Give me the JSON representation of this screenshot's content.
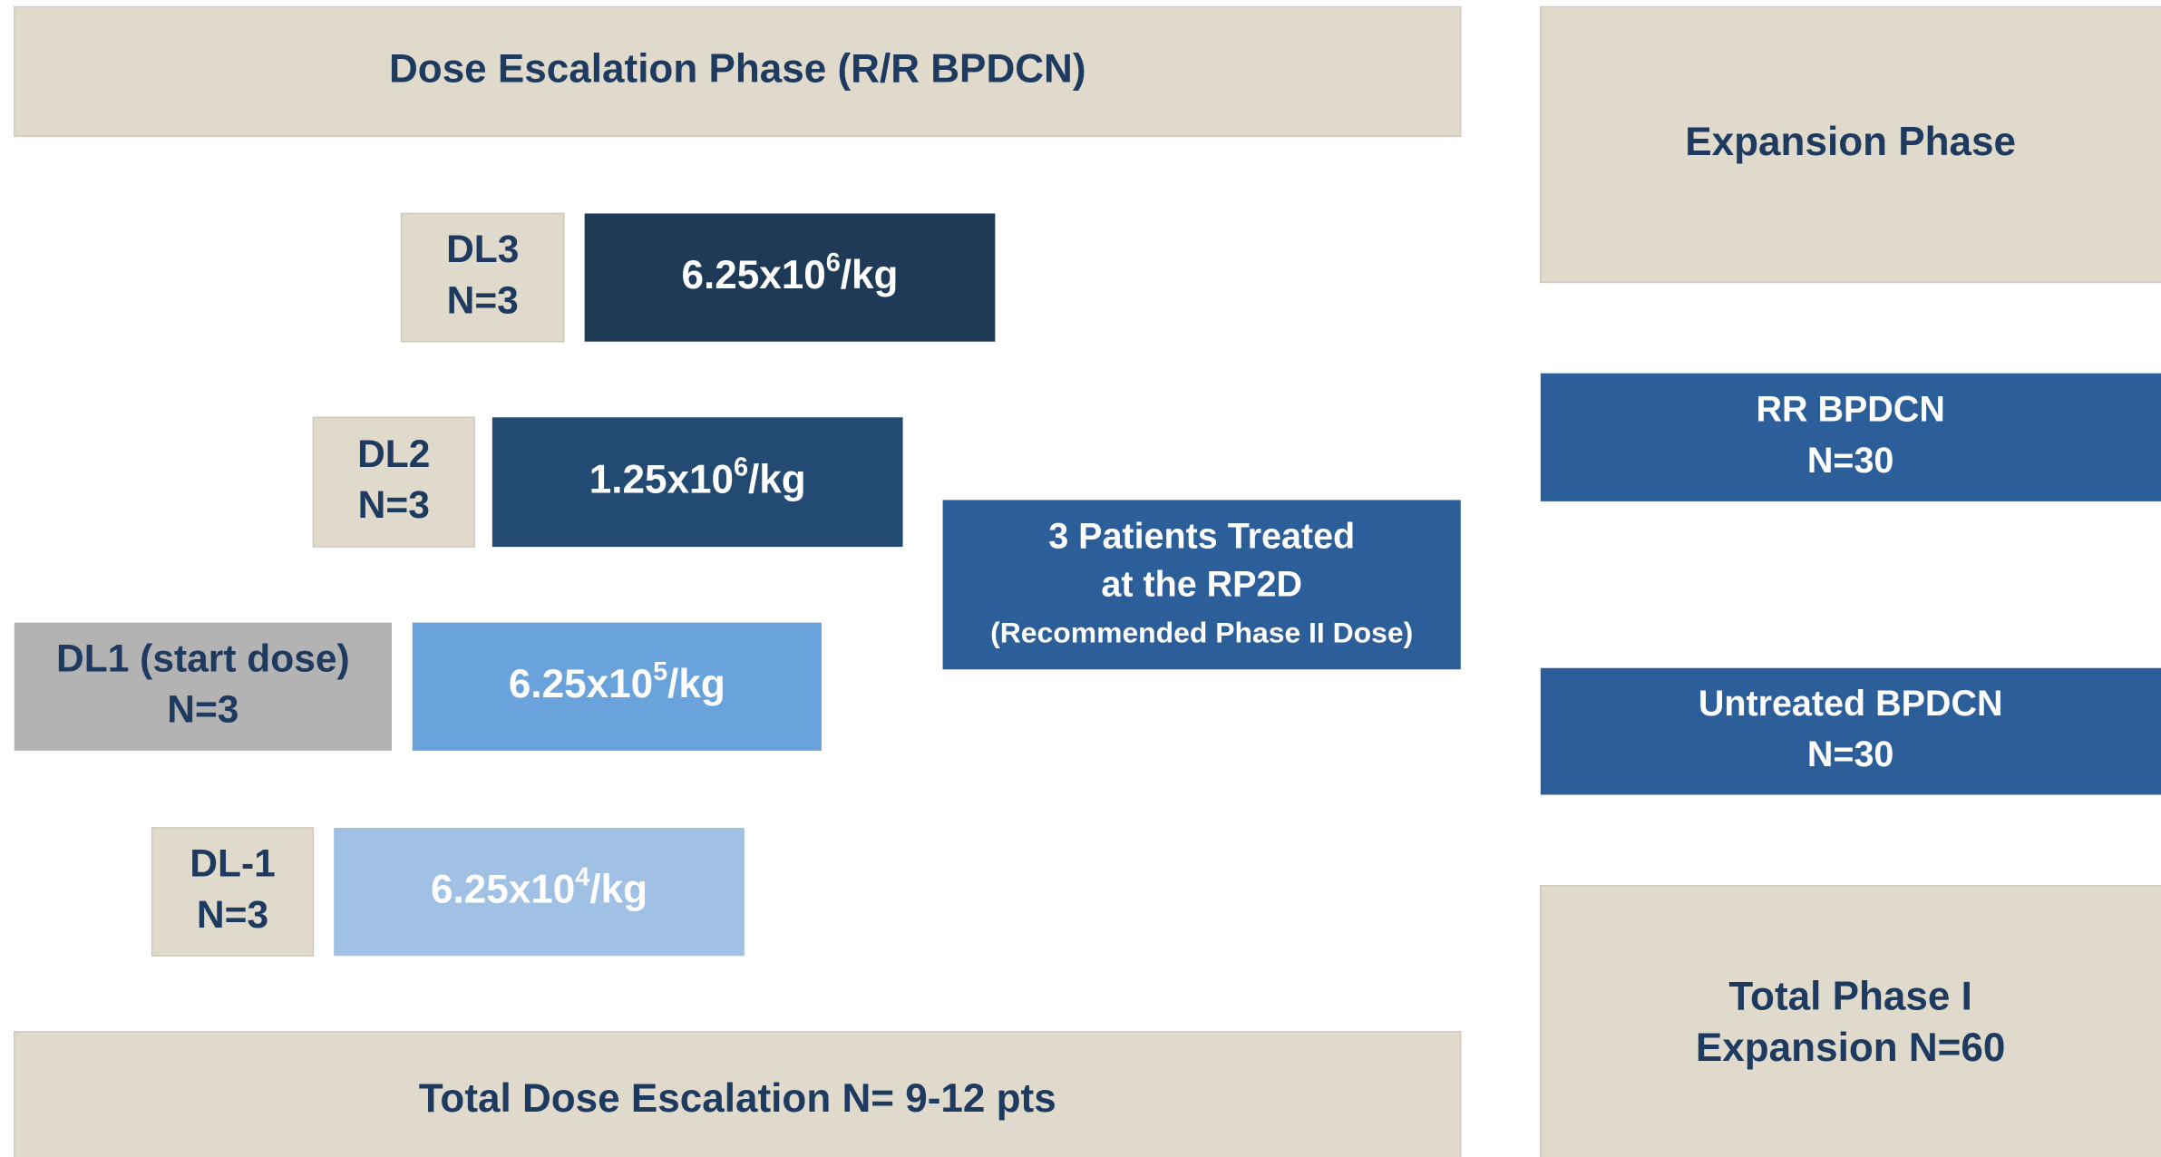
{
  "escalation": {
    "title": "Dose Escalation Phase (R/R BPDCN)",
    "levels": [
      {
        "label": [
          "DL3",
          "N=3"
        ],
        "dose": {
          "base": "6.25x10",
          "exp": "6",
          "unit": "/kg"
        }
      },
      {
        "label": [
          "DL2",
          "N=3"
        ],
        "dose": {
          "base": "1.25x10",
          "exp": "6",
          "unit": "/kg"
        }
      },
      {
        "label": [
          "DL1 (start dose)",
          "N=3"
        ],
        "dose": {
          "base": "6.25x10",
          "exp": "5",
          "unit": "/kg"
        }
      },
      {
        "label": [
          "DL-1",
          "N=3"
        ],
        "dose": {
          "base": "6.25x10",
          "exp": "4",
          "unit": "/kg"
        }
      }
    ],
    "rp2d": [
      "3 Patients Treated",
      "at the RP2D",
      "(Recommended Phase II Dose)"
    ],
    "total": "Total Dose Escalation N= 9-12 pts"
  },
  "expansion": {
    "title": "Expansion Phase",
    "cohorts": [
      [
        "RR BPDCN",
        "N=30"
      ],
      [
        "Untreated BPDCN",
        "N=30"
      ]
    ],
    "total": [
      "Total Phase I",
      "Expansion N=60"
    ]
  }
}
